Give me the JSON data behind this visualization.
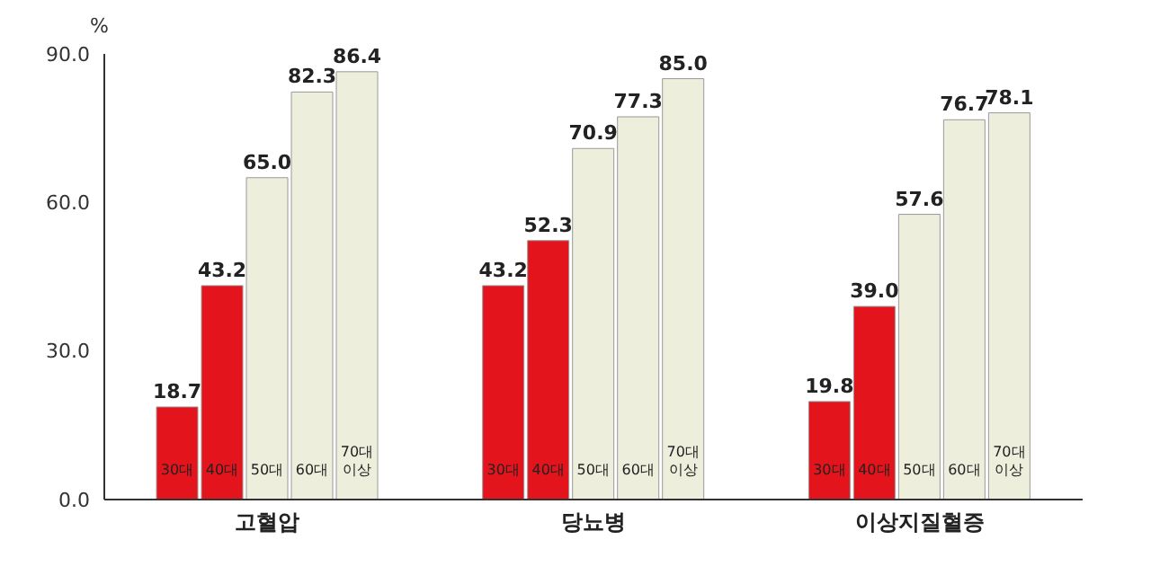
{
  "chart_data": {
    "type": "bar",
    "ylabel": "%",
    "categories": [
      "고혈압",
      "당뇨병",
      "이상지질혈증"
    ],
    "series": [
      {
        "name": "30대",
        "color": "#e3141b",
        "values": [
          18.7,
          43.2,
          19.8
        ],
        "value_labels": [
          "18.7",
          "43.2",
          "19.8"
        ]
      },
      {
        "name": "40대",
        "color": "#e3141b",
        "values": [
          43.2,
          52.3,
          39.0
        ],
        "value_labels": [
          "43.2",
          "52.3",
          "39.0"
        ]
      },
      {
        "name": "50대",
        "color": "#eeeedd",
        "values": [
          65.0,
          70.9,
          57.6
        ],
        "value_labels": [
          "65.0",
          "70.9",
          "57.6"
        ]
      },
      {
        "name": "60대",
        "color": "#eeeedd",
        "values": [
          82.3,
          77.3,
          76.7
        ],
        "value_labels": [
          "82.3",
          "77.3",
          "76.7"
        ]
      },
      {
        "name": "70대 이상",
        "color": "#eeeedd",
        "values": [
          86.4,
          85.0,
          78.1
        ],
        "value_labels": [
          "86.4",
          "85.0",
          "78.1"
        ]
      }
    ],
    "ylim": [
      0,
      90
    ],
    "yticks": [
      {
        "value": 0,
        "label": "0.0"
      },
      {
        "value": 30,
        "label": "30.0"
      },
      {
        "value": 60,
        "label": "60.0"
      },
      {
        "value": 90,
        "label": "90.0"
      }
    ],
    "grid": false
  }
}
